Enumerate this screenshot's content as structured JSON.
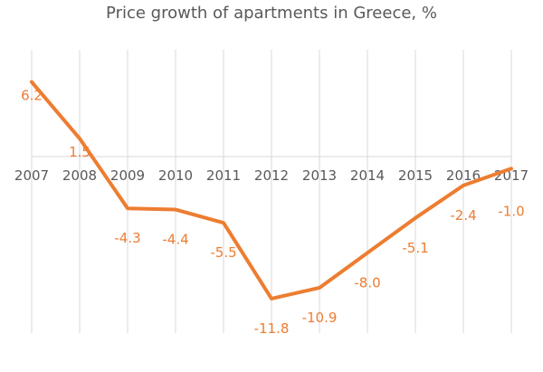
{
  "chart_data": {
    "type": "line",
    "title": "Price growth of apartments in Greece, %",
    "xlabel": "",
    "ylabel": "",
    "categories": [
      "2007",
      "2008",
      "2009",
      "2010",
      "2011",
      "2012",
      "2013",
      "2014",
      "2015",
      "2016",
      "2017"
    ],
    "series": [
      {
        "values": [
          6.2,
          1.5,
          -4.3,
          -4.4,
          -5.5,
          -11.8,
          -10.9,
          -8.0,
          -5.1,
          -2.4,
          -1.0
        ]
      }
    ],
    "data_labels": [
      "6.2",
      "1.5",
      "-4.3",
      "-4.4",
      "-5.5",
      "-11.8",
      "-10.9",
      "-8.0",
      "-5.1",
      "-2.4",
      "-1.0"
    ],
    "ylim": [
      -14,
      8
    ],
    "grid": "vertical",
    "legend": "none",
    "colors": {
      "line": "#ED7D31",
      "grid": "#D9D9D9",
      "axis": "#D9D9D9",
      "text": "#595959"
    }
  }
}
